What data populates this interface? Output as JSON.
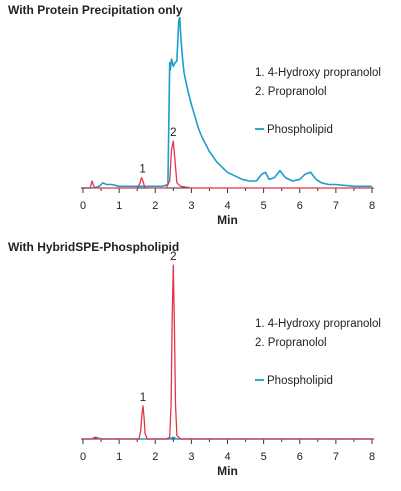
{
  "chart_data": [
    {
      "type": "line",
      "title": "With Protein Precipitation only",
      "xlabel": "Min",
      "ylabel": "",
      "xlim": [
        0,
        8
      ],
      "ylim": [
        0,
        100
      ],
      "xticks": [
        "0",
        "1",
        "2",
        "3",
        "4",
        "5",
        "6",
        "7",
        "8"
      ],
      "legend": {
        "items": [
          "1. 4-Hydroxy propranolol",
          "2. Propranolol"
        ],
        "series_label": "Phospholipid",
        "series_color": "#1a9fc8",
        "position": "right"
      },
      "peak_labels": [
        {
          "label": "1",
          "x": 1.65
        },
        {
          "label": "2",
          "x": 2.5
        }
      ],
      "series": [
        {
          "name": "Phospholipid",
          "color": "#1a9fc8",
          "x": [
            0,
            0.3,
            0.45,
            0.55,
            0.65,
            0.8,
            1.0,
            1.2,
            1.4,
            1.6,
            1.8,
            2.0,
            2.2,
            2.35,
            2.4,
            2.42,
            2.45,
            2.5,
            2.55,
            2.6,
            2.65,
            2.68,
            2.7,
            2.72,
            2.75,
            2.8,
            2.9,
            3.0,
            3.1,
            3.2,
            3.3,
            3.4,
            3.5,
            3.6,
            3.7,
            3.8,
            3.9,
            4.0,
            4.2,
            4.4,
            4.6,
            4.8,
            4.95,
            5.05,
            5.15,
            5.3,
            5.45,
            5.6,
            5.8,
            6.0,
            6.15,
            6.3,
            6.45,
            6.6,
            6.8,
            7.0,
            7.5,
            8.0
          ],
          "y": [
            0,
            0,
            1,
            3,
            2,
            2,
            1,
            1,
            1,
            1,
            1,
            1,
            1,
            2,
            72,
            68,
            74,
            70,
            72,
            73,
            96,
            98,
            90,
            83,
            76,
            66,
            56,
            48,
            41,
            34,
            29,
            25,
            21,
            18,
            15,
            13,
            11,
            9,
            7,
            5,
            4,
            4,
            8,
            9,
            5,
            6,
            10,
            6,
            4,
            5,
            8,
            9,
            5,
            3,
            2,
            2,
            1,
            1
          ]
        },
        {
          "name": "",
          "color": "#e2364a",
          "x": [
            0,
            0.2,
            0.25,
            0.3,
            0.35,
            0.5,
            1.0,
            1.5,
            1.58,
            1.62,
            1.66,
            1.7,
            1.75,
            2.0,
            2.3,
            2.4,
            2.45,
            2.5,
            2.55,
            2.6,
            2.7,
            3.0,
            4.0,
            5.0,
            6.0,
            7.0,
            8.0
          ],
          "y": [
            0,
            0,
            4,
            1,
            0,
            0,
            0,
            0,
            3,
            6,
            4,
            1,
            0,
            0,
            0,
            4,
            22,
            27,
            15,
            3,
            1,
            0,
            0,
            0,
            0,
            0,
            0
          ]
        }
      ]
    },
    {
      "type": "line",
      "title": "With HybridSPE-Phospholipid",
      "xlabel": "Min",
      "ylabel": "",
      "xlim": [
        0,
        8
      ],
      "ylim": [
        0,
        100
      ],
      "xticks": [
        "0",
        "1",
        "2",
        "3",
        "4",
        "5",
        "6",
        "7",
        "8"
      ],
      "legend": {
        "items": [
          "1. 4-Hydroxy propranolol",
          "2. Propranolol"
        ],
        "series_label": "Phospholipid",
        "series_color": "#1a9fc8",
        "position": "right"
      },
      "peak_labels": [
        {
          "label": "1",
          "x": 1.66
        },
        {
          "label": "2",
          "x": 2.5
        }
      ],
      "series": [
        {
          "name": "Phospholipid",
          "color": "#1a9fc8",
          "x": [
            0,
            0.25,
            0.35,
            0.5,
            1.0,
            2.0,
            2.4,
            2.5,
            2.6,
            3.0,
            4.0,
            5.0,
            6.0,
            7.0,
            8.0
          ],
          "y": [
            0,
            0,
            1,
            0,
            0,
            0,
            0,
            1,
            0,
            0,
            0,
            0,
            0,
            0,
            0
          ]
        },
        {
          "name": "",
          "color": "#e2364a",
          "x": [
            0,
            0.25,
            0.32,
            0.4,
            1.0,
            1.55,
            1.6,
            1.63,
            1.66,
            1.69,
            1.72,
            1.78,
            2.3,
            2.4,
            2.44,
            2.47,
            2.5,
            2.53,
            2.56,
            2.6,
            2.7,
            3.0,
            4.0,
            5.0,
            6.0,
            7.0,
            8.0
          ],
          "y": [
            0,
            0,
            1,
            0,
            0,
            0,
            5,
            14,
            19,
            12,
            3,
            0,
            0,
            1,
            20,
            70,
            100,
            65,
            20,
            2,
            0,
            0,
            0,
            0,
            0,
            0,
            0
          ]
        }
      ]
    }
  ]
}
